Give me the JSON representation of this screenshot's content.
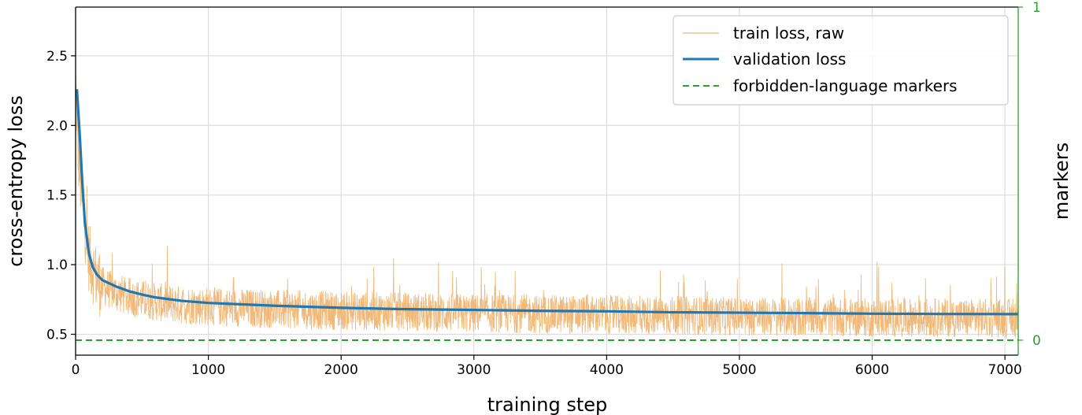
{
  "chart_data": {
    "type": "line",
    "title": "",
    "xlabel": "training step",
    "ylabel": "cross-entropy loss",
    "y2label": "markers",
    "xlim": [
      0,
      7100
    ],
    "ylim": [
      0.35,
      2.85
    ],
    "y2lim": [
      -0.045,
      1.0
    ],
    "x_ticks": [
      0,
      1000,
      2000,
      3000,
      4000,
      5000,
      6000,
      7000
    ],
    "x_tick_labels": [
      "0",
      "1000",
      "2000",
      "3000",
      "4000",
      "5000",
      "6000",
      "7000"
    ],
    "y_ticks": [
      0.5,
      1.0,
      1.5,
      2.0,
      2.5
    ],
    "y_tick_labels": [
      "0.5",
      "1.0",
      "1.5",
      "2.0",
      "2.5"
    ],
    "y2_ticks": [
      0,
      1
    ],
    "y2_tick_labels": [
      "0",
      "1"
    ],
    "grid": true,
    "legend_position": "top-right",
    "legend": [
      "train loss, raw",
      "validation loss",
      "forbidden-language markers"
    ],
    "colors": {
      "train": "#f0b572",
      "validation": "#1f77b4",
      "markers": "#2ca02c",
      "grid": "#dddddd",
      "axis": "#000000"
    },
    "series": [
      {
        "name": "train loss, raw",
        "kind": "noisy_line",
        "x": [
          0,
          20,
          50,
          80,
          100,
          150,
          200,
          300,
          400,
          500,
          700,
          1000,
          1500,
          2000,
          2500,
          3000,
          3500,
          4000,
          4500,
          5000,
          5500,
          6000,
          6500,
          7000,
          7100
        ],
        "y": [
          2.3,
          1.8,
          1.45,
          1.2,
          1.05,
          0.92,
          0.85,
          0.8,
          0.77,
          0.75,
          0.72,
          0.7,
          0.68,
          0.67,
          0.66,
          0.65,
          0.645,
          0.64,
          0.635,
          0.63,
          0.625,
          0.62,
          0.62,
          0.615,
          0.615
        ],
        "noise_amplitude": 0.14
      },
      {
        "name": "validation loss",
        "kind": "line",
        "x": [
          10,
          30,
          50,
          70,
          100,
          130,
          160,
          200,
          300,
          400,
          500,
          600,
          800,
          1000,
          1500,
          2000,
          2500,
          3000,
          3500,
          4000,
          4500,
          5000,
          5500,
          6000,
          6500,
          7000,
          7100
        ],
        "y": [
          2.26,
          1.95,
          1.6,
          1.3,
          1.08,
          0.98,
          0.93,
          0.89,
          0.845,
          0.81,
          0.785,
          0.765,
          0.74,
          0.725,
          0.705,
          0.69,
          0.68,
          0.675,
          0.668,
          0.665,
          0.658,
          0.655,
          0.652,
          0.648,
          0.646,
          0.645,
          0.645
        ]
      },
      {
        "name": "forbidden-language markers",
        "kind": "hline",
        "axis": "y2",
        "y": 0
      }
    ]
  }
}
